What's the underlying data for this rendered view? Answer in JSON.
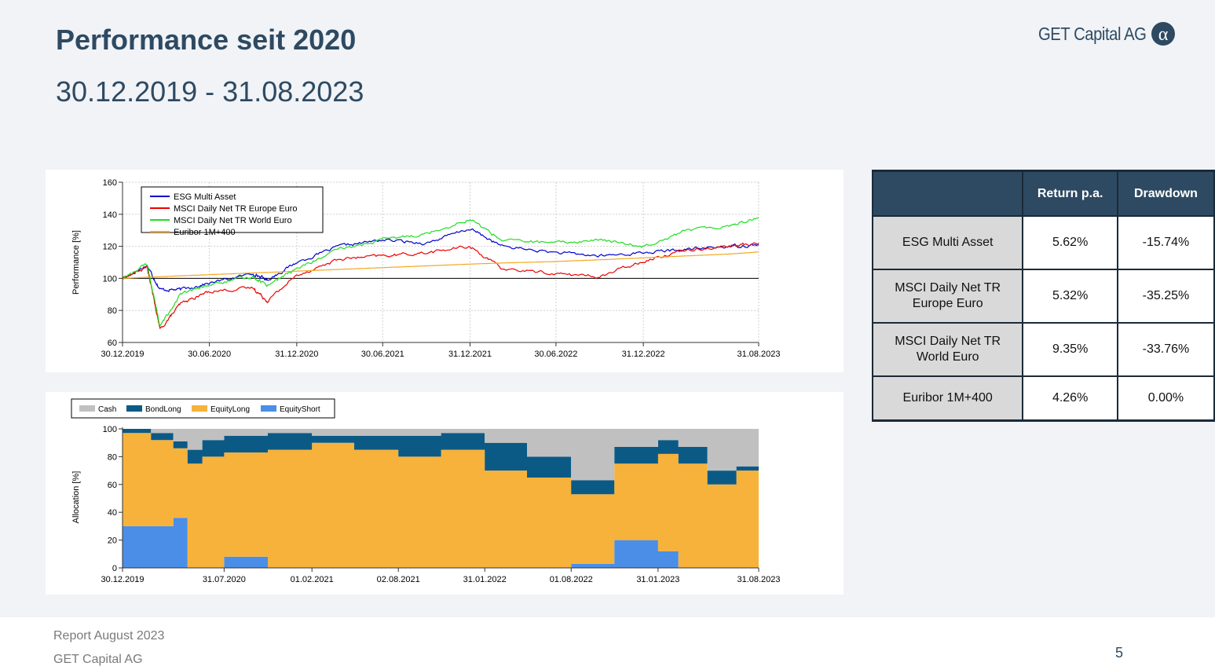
{
  "header": {
    "title": "Performance seit 2020",
    "subtitle": "30.12.2019 - 31.08.2023",
    "logo_text": "GET Capital AG"
  },
  "perf_chart": {
    "ylabel": "Performance [%]",
    "yticks": [
      "60",
      "80",
      "100",
      "120",
      "140",
      "160"
    ],
    "xticks": [
      "30.12.2019",
      "30.06.2020",
      "31.12.2020",
      "30.06.2021",
      "31.12.2021",
      "30.06.2022",
      "31.12.2022",
      "31.08.2023"
    ],
    "legend": [
      "ESG Multi Asset",
      "MSCI Daily Net TR Europe Euro",
      "MSCI Daily Net TR World Euro",
      "Euribor 1M+400"
    ]
  },
  "alloc_chart": {
    "ylabel": "Allocation [%]",
    "yticks": [
      "0",
      "20",
      "40",
      "60",
      "80",
      "100"
    ],
    "xticks": [
      "30.12.2019",
      "31.07.2020",
      "01.02.2021",
      "02.08.2021",
      "31.01.2022",
      "01.08.2022",
      "31.01.2023",
      "31.08.2023"
    ],
    "legend": [
      "Cash",
      "BondLong",
      "EquityLong",
      "EquityShort"
    ]
  },
  "chart_data": [
    {
      "type": "line",
      "ylim": [
        60,
        160
      ],
      "grid": true,
      "legend_position": "top-left",
      "colors": [
        "#0000d0",
        "#ee0000",
        "#22dd22",
        "#f5a623"
      ],
      "x": [
        "2019-12-30",
        "2020-02-20",
        "2020-03-18",
        "2020-04-30",
        "2020-06-30",
        "2020-09-30",
        "2020-10-30",
        "2020-12-31",
        "2021-03-31",
        "2021-06-30",
        "2021-09-30",
        "2021-12-31",
        "2022-03-08",
        "2022-06-30",
        "2022-09-30",
        "2022-12-31",
        "2023-03-31",
        "2023-06-30",
        "2023-08-31"
      ],
      "series": [
        {
          "name": "ESG Multi Asset",
          "values": [
            100,
            108,
            93,
            93,
            97,
            103,
            99,
            110,
            120,
            124,
            122,
            131,
            120,
            116,
            114,
            116,
            118,
            120,
            121
          ]
        },
        {
          "name": "MSCI Daily Net TR Europe Euro",
          "values": [
            100,
            107,
            68,
            84,
            92,
            94,
            86,
            102,
            112,
            114,
            116,
            120,
            106,
            103,
            101,
            111,
            118,
            120,
            122
          ]
        },
        {
          "name": "MSCI Daily Net TR World Euro",
          "values": [
            100,
            109,
            70,
            90,
            96,
            101,
            96,
            106,
            118,
            124,
            128,
            137,
            124,
            122,
            124,
            120,
            130,
            133,
            138
          ]
        },
        {
          "name": "Euribor 1M+400",
          "values": [
            100,
            100.7,
            101,
            101.6,
            102.3,
            103.4,
            103.7,
            104.5,
            105.6,
            106.7,
            107.8,
            108.9,
            109.6,
            110.5,
            111.6,
            112.8,
            114,
            115.2,
            116.5
          ]
        }
      ]
    },
    {
      "type": "area",
      "stacked": true,
      "ylim": [
        0,
        100
      ],
      "legend_position": "top-left",
      "colors": {
        "Cash": "#c0c0c0",
        "BondLong": "#0b5a86",
        "EquityLong": "#f7b23b",
        "EquityShort": "#4a8ee8"
      },
      "x": [
        "2019-12-30",
        "2020-02-28",
        "2020-04-15",
        "2020-05-15",
        "2020-06-15",
        "2020-07-31",
        "2020-10-31",
        "2021-02-01",
        "2021-05-01",
        "2021-08-02",
        "2021-10-31",
        "2022-01-31",
        "2022-04-30",
        "2022-08-01",
        "2022-10-31",
        "2023-01-31",
        "2023-03-15",
        "2023-05-15",
        "2023-07-15",
        "2023-08-31"
      ],
      "series": [
        {
          "name": "EquityShort",
          "values": [
            30,
            30,
            36,
            0,
            0,
            8,
            0,
            0,
            0,
            0,
            0,
            0,
            0,
            3,
            20,
            12,
            0,
            0,
            0,
            0
          ]
        },
        {
          "name": "EquityLong",
          "values": [
            67,
            62,
            50,
            75,
            80,
            75,
            85,
            90,
            85,
            80,
            85,
            70,
            65,
            50,
            55,
            70,
            75,
            60,
            70,
            55
          ]
        },
        {
          "name": "BondLong",
          "values": [
            3,
            5,
            5,
            10,
            12,
            12,
            12,
            5,
            10,
            15,
            12,
            20,
            15,
            10,
            12,
            10,
            12,
            10,
            3,
            5
          ]
        },
        {
          "name": "Cash",
          "values": [
            0,
            3,
            9,
            15,
            8,
            5,
            3,
            5,
            5,
            5,
            3,
            10,
            20,
            37,
            13,
            8,
            13,
            30,
            27,
            40
          ]
        }
      ]
    }
  ],
  "stats_table": {
    "headers": [
      "",
      "Return p.a.",
      "Drawdown"
    ],
    "rows": [
      {
        "label": "ESG Multi Asset",
        "return": "5.62%",
        "drawdown": "-15.74%"
      },
      {
        "label": "MSCI Daily Net TR Europe Euro",
        "return": "5.32%",
        "drawdown": "-35.25%"
      },
      {
        "label": "MSCI Daily Net TR World Euro",
        "return": "9.35%",
        "drawdown": "-33.76%"
      },
      {
        "label": "Euribor 1M+400",
        "return": "4.26%",
        "drawdown": "0.00%"
      }
    ]
  },
  "footer": {
    "report": "Report August 2023",
    "company": "GET Capital AG",
    "page": "5"
  }
}
